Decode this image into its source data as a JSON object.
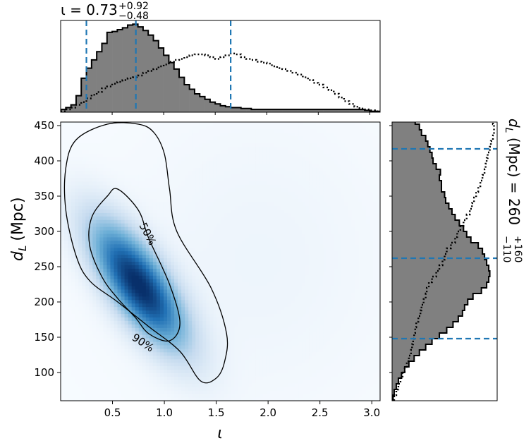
{
  "chart_data": [
    {
      "panel": "top-marginal",
      "type": "histogram",
      "title_parts": {
        "prefix": "ι = 0.73",
        "sup": "+0.92",
        "sub": "−0.48"
      },
      "xlim": [
        0.0,
        3.1
      ],
      "quantiles": [
        0.25,
        0.73,
        1.65
      ],
      "bin_edges_start": 0.0,
      "bin_width": 0.05,
      "posterior_counts": [
        3,
        5,
        8,
        18,
        37,
        48,
        57,
        66,
        75,
        87,
        88,
        90,
        92,
        95,
        96,
        93,
        89,
        84,
        78,
        70,
        62,
        54,
        47,
        38,
        30,
        25,
        20,
        17,
        14,
        11,
        9,
        7,
        6,
        5,
        5,
        4,
        4,
        3,
        3,
        3,
        3,
        3,
        3,
        3,
        3,
        3,
        3,
        3,
        3,
        3,
        3,
        3,
        3,
        3,
        3,
        3,
        3,
        3,
        3,
        2,
        1,
        1
      ],
      "prior_counts": [
        1,
        3,
        5,
        8,
        11,
        15,
        19,
        22,
        26,
        28,
        31,
        33,
        35,
        37,
        38,
        40,
        43,
        45,
        47,
        50,
        52,
        55,
        57,
        58,
        60,
        62,
        63,
        63,
        62,
        60,
        58,
        60,
        62,
        64,
        63,
        60,
        58,
        57,
        55,
        54,
        53,
        50,
        48,
        47,
        45,
        43,
        41,
        38,
        35,
        32,
        30,
        27,
        24,
        20,
        16,
        12,
        9,
        6,
        4,
        3,
        2,
        1
      ]
    },
    {
      "panel": "joint",
      "type": "heatmap",
      "xlabel": "ι",
      "ylabel_main": "d",
      "ylabel_sub": "L",
      "ylabel_unit": "(Mpc)",
      "xlim": [
        0.0,
        3.08
      ],
      "ylim": [
        60,
        455
      ],
      "xticks": [
        "0.5",
        "1.0",
        "1.5",
        "2.0",
        "2.5",
        "3.0"
      ],
      "yticks": [
        "100",
        "150",
        "200",
        "250",
        "300",
        "350",
        "400",
        "450"
      ],
      "colormap": "Blues",
      "density_peak": {
        "x": 0.75,
        "y": 225
      },
      "contour_labels": [
        "50%",
        "90%"
      ],
      "contour_50": [
        [
          0.85,
          155
        ],
        [
          1.05,
          145
        ],
        [
          1.15,
          170
        ],
        [
          1.05,
          225
        ],
        [
          0.85,
          290
        ],
        [
          0.75,
          330
        ],
        [
          0.55,
          360
        ],
        [
          0.45,
          350
        ],
        [
          0.3,
          320
        ],
        [
          0.28,
          280
        ],
        [
          0.4,
          235
        ],
        [
          0.55,
          205
        ],
        [
          0.72,
          178
        ],
        [
          0.85,
          155
        ]
      ],
      "contour_90": [
        [
          1.15,
          130
        ],
        [
          1.35,
          88
        ],
        [
          1.5,
          92
        ],
        [
          1.58,
          115
        ],
        [
          1.6,
          155
        ],
        [
          1.45,
          220
        ],
        [
          1.12,
          300
        ],
        [
          1.05,
          360
        ],
        [
          1.0,
          410
        ],
        [
          0.9,
          440
        ],
        [
          0.75,
          452
        ],
        [
          0.45,
          452
        ],
        [
          0.15,
          430
        ],
        [
          0.05,
          390
        ],
        [
          0.05,
          330
        ],
        [
          0.15,
          265
        ],
        [
          0.28,
          230
        ],
        [
          0.55,
          200
        ],
        [
          0.85,
          165
        ],
        [
          1.15,
          130
        ]
      ]
    },
    {
      "panel": "right-marginal",
      "type": "histogram",
      "title_parts": {
        "prefix": "d",
        "sub_L": "L",
        "rest": " (Mpc) = 260",
        "sup": "+160",
        "sub": "−110"
      },
      "ylim": [
        60,
        455
      ],
      "quantiles": [
        148,
        262,
        417
      ],
      "bin_edges_start": 60,
      "bin_width": 8,
      "posterior_counts": [
        1,
        2,
        4,
        6,
        9,
        12,
        16,
        21,
        26,
        32,
        38,
        45,
        52,
        58,
        63,
        67,
        69,
        72,
        77,
        85,
        90,
        92,
        93,
        92,
        90,
        88,
        86,
        82,
        75,
        71,
        68,
        64,
        60,
        57,
        54,
        51,
        50,
        47,
        47,
        45,
        46,
        42,
        39,
        38,
        36,
        34,
        32,
        28,
        26,
        22,
        18
      ],
      "prior_counts": [
        2,
        4,
        6,
        8,
        10,
        12,
        14,
        16,
        18,
        19,
        20,
        21,
        22,
        23,
        25,
        27,
        28,
        30,
        32,
        33,
        35,
        38,
        42,
        45,
        48,
        50,
        52,
        56,
        60,
        62,
        65,
        68,
        71,
        74,
        76,
        78,
        80,
        82,
        84,
        86,
        88,
        89,
        90,
        91,
        93,
        94,
        96,
        97,
        97,
        96,
        95
      ]
    }
  ]
}
